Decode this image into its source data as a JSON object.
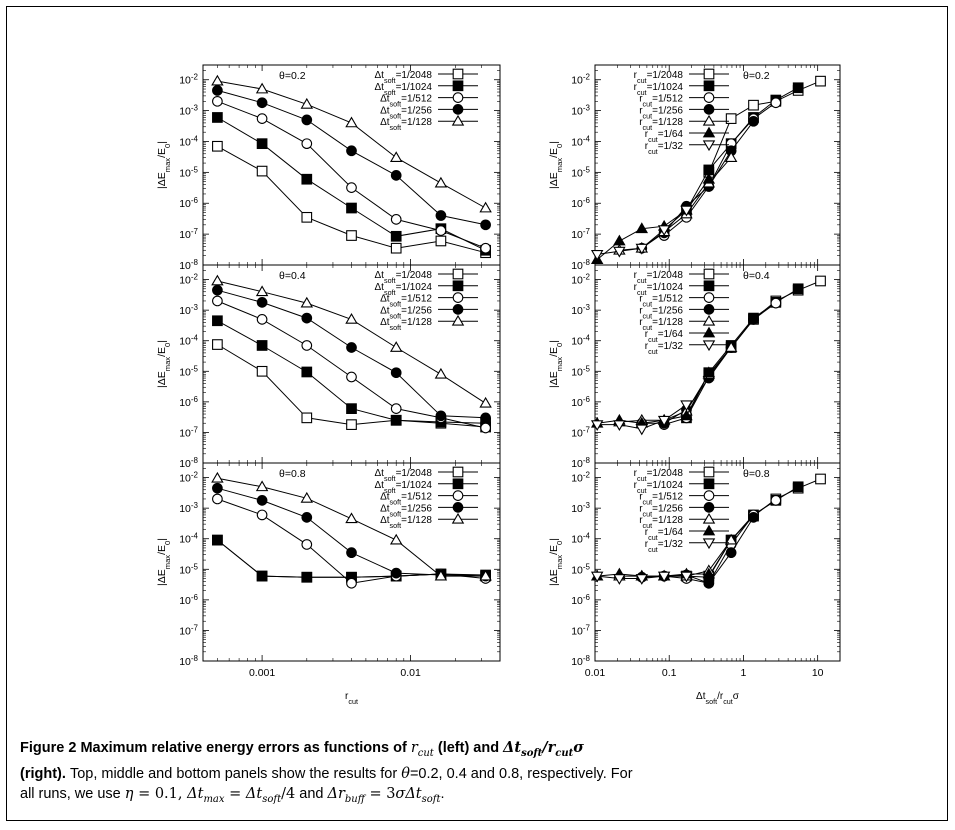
{
  "figure": {
    "caption": {
      "label": "Figure 2",
      "title_a": "Maximum relative energy errors as functions of",
      "title_b": "(left) and",
      "title_c": "(right).",
      "body_a": "Top, middle and bottom panels show the results for",
      "body_b": "=0.2, 0.4 and 0.8, respectively. For",
      "body_c": "all runs, we use",
      "body_d": "and"
    }
  },
  "chart_data": [
    {
      "type": "line",
      "panel": "left-top",
      "scale": "log-log",
      "xlim": [
        0.0004,
        0.04
      ],
      "ylim": [
        1e-08,
        0.03
      ],
      "xticks": [],
      "xtick_labels": [],
      "annotation": "θ=0.2",
      "ylabel": "|ΔE_max/E_0|",
      "legend_position": "top-right",
      "x": [
        0.0005,
        0.001,
        0.002,
        0.004,
        0.008,
        0.016,
        0.032
      ],
      "series": [
        {
          "name": "Δt_soft=1/2048",
          "marker": "square-open",
          "values": [
            7e-05,
            1.1e-05,
            3.5e-07,
            9e-08,
            3.5e-08,
            6e-08,
            2.5e-08
          ]
        },
        {
          "name": "Δt_soft=1/1024",
          "marker": "square-filled",
          "values": [
            0.0006,
            8.5e-05,
            6e-06,
            7e-07,
            8.5e-08,
            1.5e-07,
            3e-08
          ]
        },
        {
          "name": "Δt_soft=1/512",
          "marker": "circle-open",
          "values": [
            0.002,
            0.00055,
            8.5e-05,
            3.2e-06,
            3e-07,
            1.3e-07,
            3.5e-08
          ]
        },
        {
          "name": "Δt_soft=1/256",
          "marker": "circle-filled",
          "values": [
            0.0045,
            0.0018,
            0.0005,
            5e-05,
            8e-06,
            4e-07,
            2e-07
          ]
        },
        {
          "name": "Δt_soft=1/128",
          "marker": "triangle-open",
          "values": [
            0.009,
            0.005,
            0.0016,
            0.0004,
            3e-05,
            4.5e-06,
            7e-07
          ]
        }
      ]
    },
    {
      "type": "line",
      "panel": "left-middle",
      "scale": "log-log",
      "xlim": [
        0.0004,
        0.04
      ],
      "ylim": [
        1e-08,
        0.03
      ],
      "xticks": [],
      "xtick_labels": [],
      "annotation": "θ=0.4",
      "ylabel": "|ΔE_max/E_0|",
      "legend_position": "top-right",
      "x": [
        0.0005,
        0.001,
        0.002,
        0.004,
        0.008,
        0.016,
        0.032
      ],
      "series": [
        {
          "name": "Δt_soft=1/2048",
          "marker": "square-open",
          "values": [
            7.5e-05,
            1e-05,
            3e-07,
            1.8e-07,
            2.5e-07,
            2e-07,
            1.5e-07
          ]
        },
        {
          "name": "Δt_soft=1/1024",
          "marker": "square-filled",
          "values": [
            0.00045,
            7e-05,
            9.5e-06,
            6e-07,
            2.5e-07,
            2.2e-07,
            2e-07
          ]
        },
        {
          "name": "Δt_soft=1/512",
          "marker": "circle-open",
          "values": [
            0.002,
            0.0005,
            7e-05,
            6.5e-06,
            6e-07,
            3e-07,
            1.4e-07
          ]
        },
        {
          "name": "Δt_soft=1/256",
          "marker": "circle-filled",
          "values": [
            0.0045,
            0.0018,
            0.00055,
            6e-05,
            9e-06,
            3.5e-07,
            3e-07
          ]
        },
        {
          "name": "Δt_soft=1/128",
          "marker": "triangle-open",
          "values": [
            0.009,
            0.004,
            0.0017,
            0.0005,
            6e-05,
            8e-06,
            9e-07
          ]
        }
      ]
    },
    {
      "type": "line",
      "panel": "left-bottom",
      "scale": "log-log",
      "xlim": [
        0.0004,
        0.04
      ],
      "ylim": [
        1e-08,
        0.03
      ],
      "xticks": [
        0.001,
        0.01
      ],
      "xtick_labels": [
        "0.001",
        "0.01"
      ],
      "annotation": "θ=0.8",
      "xlabel": "r_cut",
      "ylabel": "|ΔE_max/E_0|",
      "legend_position": "top-right",
      "x": [
        0.0005,
        0.001,
        0.002,
        0.004,
        0.008,
        0.016,
        0.032
      ],
      "series": [
        {
          "name": "Δt_soft=1/2048",
          "marker": "square-open",
          "values": [
            9e-05,
            6e-06,
            5.5e-06,
            5.5e-06,
            6e-06,
            7e-06,
            6e-06
          ]
        },
        {
          "name": "Δt_soft=1/1024",
          "marker": "square-filled",
          "values": [
            9e-05,
            6e-06,
            5.5e-06,
            5.5e-06,
            6e-06,
            7e-06,
            6.5e-06
          ]
        },
        {
          "name": "Δt_soft=1/512",
          "marker": "circle-open",
          "values": [
            0.002,
            0.0006,
            6.5e-05,
            3.5e-06,
            6e-06,
            7e-06,
            5e-06
          ]
        },
        {
          "name": "Δt_soft=1/256",
          "marker": "circle-filled",
          "values": [
            0.0045,
            0.0018,
            0.0005,
            3.5e-05,
            7.5e-06,
            6.5e-06,
            6e-06
          ]
        },
        {
          "name": "Δt_soft=1/128",
          "marker": "triangle-open",
          "values": [
            0.0095,
            0.005,
            0.0021,
            0.00045,
            9e-05,
            6e-06,
            6e-06
          ]
        }
      ]
    },
    {
      "type": "line",
      "panel": "right-top",
      "scale": "log-log",
      "xlim": [
        0.01,
        20
      ],
      "ylim": [
        1e-08,
        0.03
      ],
      "xticks": [],
      "xtick_labels": [],
      "annotation": "θ=0.2",
      "ylabel": "|ΔE_max/E_0|",
      "legend_position": "top-left",
      "series": [
        {
          "name": "r_cut=1/2048",
          "marker": "square-open",
          "x": [
            0.3415,
            0.683,
            1.366,
            2.732,
            5.464,
            10.93
          ],
          "values": [
            1e-05,
            0.00055,
            0.0015,
            0.002,
            0.0045,
            0.009
          ]
        },
        {
          "name": "r_cut=1/1024",
          "marker": "square-filled",
          "x": [
            0.1707,
            0.3415,
            0.683,
            1.366,
            2.732,
            5.464
          ],
          "values": [
            6e-07,
            1.2e-05,
            8.5e-05,
            0.0006,
            0.0022,
            0.0055
          ]
        },
        {
          "name": "r_cut=1/512",
          "marker": "circle-open",
          "x": [
            0.0854,
            0.1707,
            0.3415,
            0.683,
            1.366,
            2.732
          ],
          "values": [
            9e-08,
            3.5e-07,
            3.5e-06,
            8.5e-05,
            0.00055,
            0.0018
          ]
        },
        {
          "name": "r_cut=1/256",
          "marker": "circle-filled",
          "x": [
            0.0427,
            0.0854,
            0.1707,
            0.3415,
            0.683,
            1.366
          ],
          "values": [
            3.5e-08,
            1.1e-07,
            8e-07,
            3.5e-06,
            5e-05,
            0.00045
          ]
        },
        {
          "name": "r_cut=1/128",
          "marker": "triangle-open",
          "x": [
            0.0213,
            0.0427,
            0.0854,
            0.1707,
            0.3415,
            0.683
          ],
          "values": [
            3e-08,
            3.5e-08,
            1.2e-07,
            4.5e-07,
            4.5e-06,
            3e-05
          ]
        },
        {
          "name": "r_cut=1/64",
          "marker": "triangle-filled",
          "x": [
            0.0107,
            0.0213,
            0.0427,
            0.0854,
            0.1707,
            0.3415
          ],
          "values": [
            1.5e-08,
            6e-08,
            1.5e-07,
            1.8e-07,
            6e-07,
            6e-06
          ]
        },
        {
          "name": "r_cut=1/32",
          "marker": "triangle-down-open",
          "x": [
            0.0107,
            0.0213,
            0.0427,
            0.0854,
            0.1707
          ],
          "values": [
            2.2e-08,
            2.8e-08,
            3.5e-08,
            1.4e-07,
            6e-07
          ]
        }
      ]
    },
    {
      "type": "line",
      "panel": "right-middle",
      "scale": "log-log",
      "xlim": [
        0.01,
        20
      ],
      "ylim": [
        1e-08,
        0.03
      ],
      "xticks": [],
      "xtick_labels": [],
      "annotation": "θ=0.4",
      "ylabel": "|ΔE_max/E_0|",
      "legend_position": "top-left",
      "series": [
        {
          "name": "r_cut=1/2048",
          "marker": "square-open",
          "x": [
            0.3415,
            0.683,
            1.366,
            2.732,
            5.464,
            10.93
          ],
          "values": [
            7.5e-06,
            6e-05,
            0.0005,
            0.002,
            0.0045,
            0.009
          ]
        },
        {
          "name": "r_cut=1/1024",
          "marker": "square-filled",
          "x": [
            0.1707,
            0.3415,
            0.683,
            1.366,
            2.732,
            5.464
          ],
          "values": [
            3e-07,
            9e-06,
            7e-05,
            0.00055,
            0.0018,
            0.005
          ]
        },
        {
          "name": "r_cut=1/512",
          "marker": "circle-open",
          "x": [
            0.0854,
            0.1707,
            0.3415,
            0.683,
            1.366,
            2.732
          ],
          "values": [
            1.8e-07,
            3e-07,
            6.5e-06,
            6e-05,
            0.0005,
            0.0017
          ]
        },
        {
          "name": "r_cut=1/256",
          "marker": "circle-filled",
          "x": [
            0.0427,
            0.0854,
            0.1707,
            0.3415,
            0.683,
            1.366
          ],
          "values": [
            2e-07,
            2e-07,
            5.5e-07,
            6e-06,
            6e-05,
            0.0005
          ]
        },
        {
          "name": "r_cut=1/128",
          "marker": "triangle-open",
          "x": [
            0.0213,
            0.0427,
            0.0854,
            0.1707,
            0.3415,
            0.683
          ],
          "values": [
            2.2e-07,
            2.5e-07,
            2.5e-07,
            5e-07,
            8e-06,
            6e-05
          ]
        },
        {
          "name": "r_cut=1/64",
          "marker": "triangle-filled",
          "x": [
            0.0107,
            0.0213,
            0.0427,
            0.0854,
            0.1707,
            0.3415
          ],
          "values": [
            2e-07,
            2.5e-07,
            2e-07,
            2.5e-07,
            3.5e-07,
            9e-06
          ]
        },
        {
          "name": "r_cut=1/32",
          "marker": "triangle-down-open",
          "x": [
            0.0107,
            0.0213,
            0.0427,
            0.0854,
            0.1707
          ],
          "values": [
            1.8e-07,
            1.8e-07,
            1.3e-07,
            2.5e-07,
            8e-07
          ]
        }
      ]
    },
    {
      "type": "line",
      "panel": "right-bottom",
      "scale": "log-log",
      "xlim": [
        0.01,
        20
      ],
      "ylim": [
        1e-08,
        0.03
      ],
      "xticks": [
        0.01,
        0.1,
        1,
        10
      ],
      "xtick_labels": [
        "0.01",
        "0.1",
        "1",
        "10"
      ],
      "annotation": "θ=0.8",
      "xlabel": "Δt_soft/r_cutσ",
      "ylabel": "|ΔE_max/E_0|",
      "legend_position": "top-left",
      "series": [
        {
          "name": "r_cut=1/2048",
          "marker": "square-open",
          "x": [
            0.3415,
            0.683,
            1.366,
            2.732,
            5.464,
            10.93
          ],
          "values": [
            6e-06,
            9e-05,
            0.00055,
            0.002,
            0.0045,
            0.009
          ]
        },
        {
          "name": "r_cut=1/1024",
          "marker": "square-filled",
          "x": [
            0.1707,
            0.3415,
            0.683,
            1.366,
            2.732,
            5.464
          ],
          "values": [
            6e-06,
            5.5e-06,
            9e-05,
            0.0006,
            0.0018,
            0.005
          ]
        },
        {
          "name": "r_cut=1/512",
          "marker": "circle-open",
          "x": [
            0.0854,
            0.1707,
            0.3415,
            0.683,
            1.366,
            2.732
          ],
          "values": [
            6e-06,
            5e-06,
            3.5e-06,
            6.5e-05,
            0.0006,
            0.0018
          ]
        },
        {
          "name": "r_cut=1/256",
          "marker": "circle-filled",
          "x": [
            0.0427,
            0.0854,
            0.1707,
            0.3415,
            0.683,
            1.366
          ],
          "values": [
            5.5e-06,
            6e-06,
            6.5e-06,
            3.5e-06,
            3.5e-05,
            0.0005
          ]
        },
        {
          "name": "r_cut=1/128",
          "marker": "triangle-open",
          "x": [
            0.0213,
            0.0427,
            0.0854,
            0.1707,
            0.3415,
            0.683
          ],
          "values": [
            6e-06,
            6e-06,
            6e-06,
            6e-06,
            9e-06,
            9e-05
          ]
        },
        {
          "name": "r_cut=1/64",
          "marker": "triangle-filled",
          "x": [
            0.0107,
            0.0213,
            0.0427,
            0.0854,
            0.1707,
            0.3415
          ],
          "values": [
            6e-06,
            7e-06,
            6e-06,
            6e-06,
            7e-06,
            7e-06
          ]
        },
        {
          "name": "r_cut=1/32",
          "marker": "triangle-down-open",
          "x": [
            0.0107,
            0.0213,
            0.0427,
            0.0854,
            0.1707
          ],
          "values": [
            6e-06,
            5e-06,
            5e-06,
            6e-06,
            6e-06
          ]
        }
      ]
    }
  ]
}
